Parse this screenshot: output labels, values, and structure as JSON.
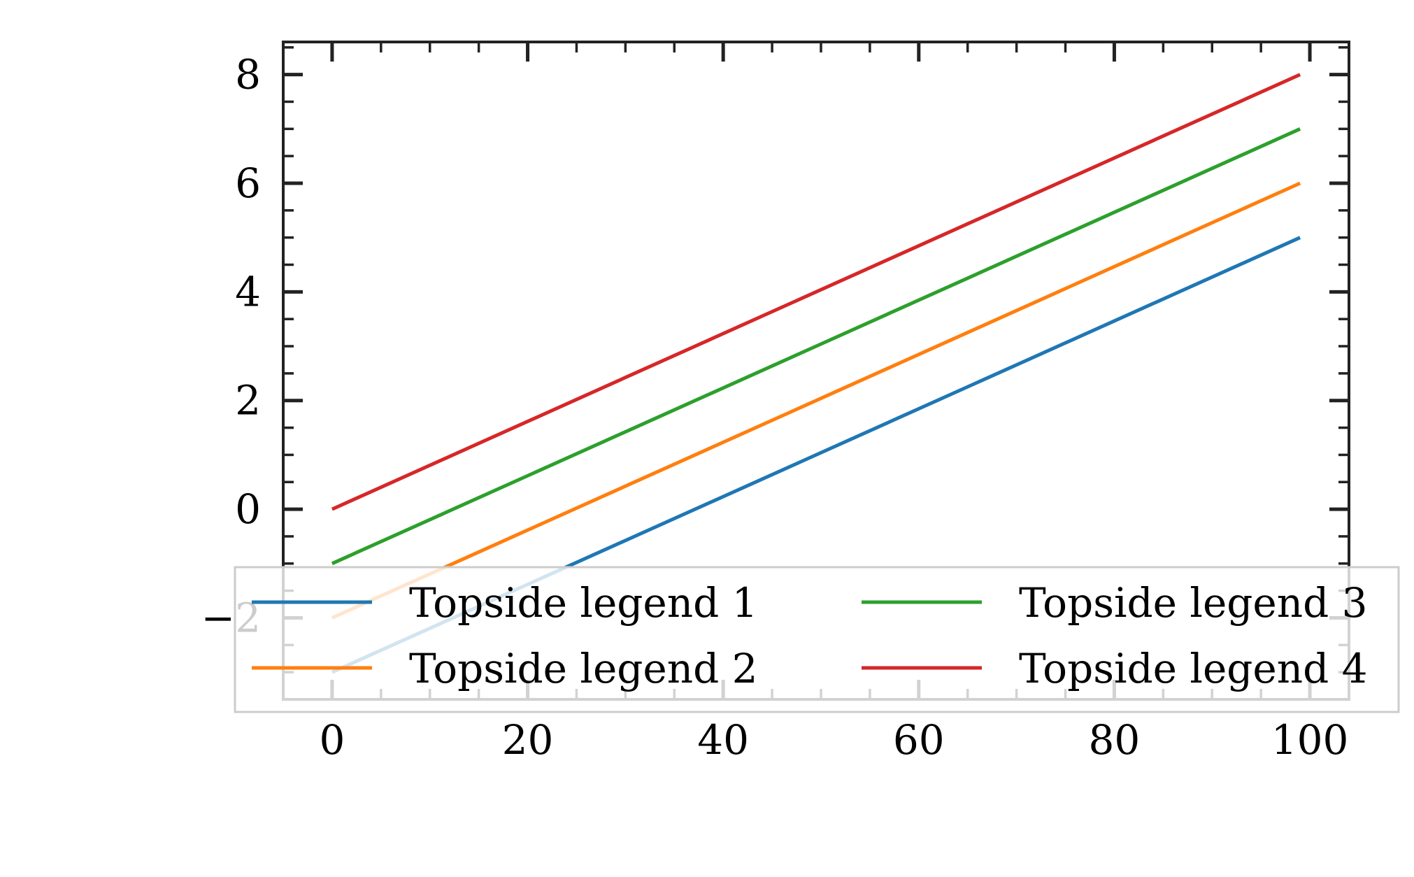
{
  "chart_data": {
    "type": "line",
    "title": "",
    "xlabel": "",
    "ylabel": "",
    "xlim": [
      -5,
      104
    ],
    "ylim": [
      -3.5,
      8.6
    ],
    "x_start": 0,
    "x_end": 99,
    "x_ticks": [
      0,
      20,
      40,
      60,
      80,
      100
    ],
    "x_tick_labels": [
      "0",
      "20",
      "40",
      "60",
      "80",
      "100"
    ],
    "x_minor_step": 5,
    "y_ticks": [
      -2,
      0,
      2,
      4,
      6,
      8
    ],
    "y_tick_labels": [
      "−2",
      "0",
      "2",
      "4",
      "6",
      "8"
    ],
    "y_minor_step": 0.5,
    "grid": false,
    "legend": {
      "placement": "bottom",
      "columns": 2
    },
    "series": [
      {
        "name": "Topside legend 1",
        "color": "#1f77b4",
        "y_start": -3,
        "y_end": 5
      },
      {
        "name": "Topside legend 2",
        "color": "#ff7f0e",
        "y_start": -2,
        "y_end": 6
      },
      {
        "name": "Topside legend 3",
        "color": "#2ca02c",
        "y_start": -1,
        "y_end": 7
      },
      {
        "name": "Topside legend 4",
        "color": "#d62728",
        "y_start": 0,
        "y_end": 8
      }
    ]
  }
}
